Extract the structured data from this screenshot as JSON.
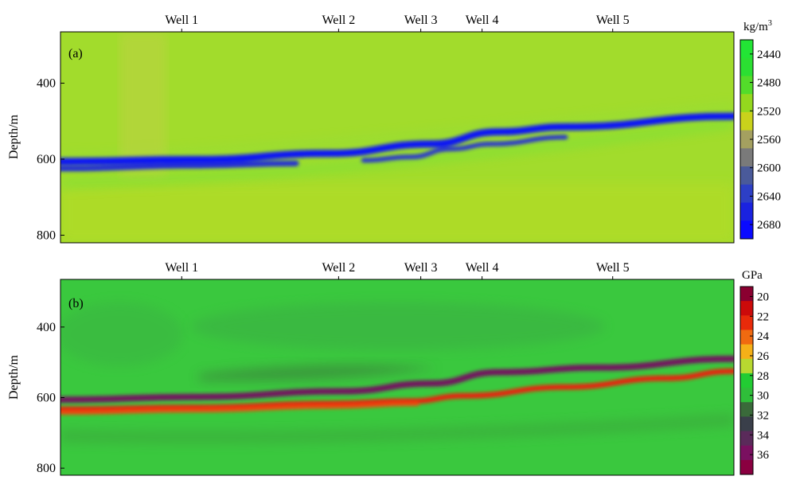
{
  "chart_data": [
    {
      "type": "heatmap",
      "panel_label": "(a)",
      "ylabel": "Depth/m",
      "y_ticks": [
        400,
        600,
        800
      ],
      "ylim": [
        265,
        820
      ],
      "x_unit": "trace",
      "xlim": [
        0,
        100
      ],
      "wells": [
        {
          "name": "Well 1",
          "x": 18
        },
        {
          "name": "Well 2",
          "x": 41.3
        },
        {
          "name": "Well 3",
          "x": 53.5
        },
        {
          "name": "Well 4",
          "x": 62.6
        },
        {
          "name": "Well 5",
          "x": 82
        }
      ],
      "colorbar": {
        "unit_base": "kg/m",
        "unit_sup": "3",
        "ticks": [
          2440,
          2480,
          2520,
          2560,
          2600,
          2640,
          2680
        ],
        "range": [
          2420,
          2700
        ],
        "colors": [
          "#22e535",
          "#2bdf32",
          "#53dc2a",
          "#94d81e",
          "#c9d21b",
          "#a4a060",
          "#7a7a7a",
          "#4a5a9a",
          "#2d3fc6",
          "#1a22e0",
          "#0a0aff"
        ]
      },
      "background_value": 2490,
      "layers": [
        {
          "name": "main dense layer",
          "value": 2690,
          "depth_at": [
            [
              0,
              606
            ],
            [
              20,
              601
            ],
            [
              40,
              585
            ],
            [
              55,
              560
            ],
            [
              65,
              528
            ],
            [
              75,
              515
            ],
            [
              100,
              487
            ]
          ]
        },
        {
          "name": "lower dense layer",
          "value": 2660,
          "depth_at": [
            [
              0,
              625
            ],
            [
              20,
              617
            ],
            [
              35,
              611
            ]
          ]
        },
        {
          "name": "branch layer",
          "value": 2650,
          "depth_at": [
            [
              45,
              603
            ],
            [
              52,
              594
            ],
            [
              58,
              573
            ],
            [
              64,
              560
            ],
            [
              75,
              542
            ]
          ]
        }
      ]
    },
    {
      "type": "heatmap",
      "panel_label": "(b)",
      "ylabel": "Depth/m",
      "y_ticks": [
        400,
        600,
        800
      ],
      "ylim": [
        265,
        820
      ],
      "x_unit": "trace",
      "xlim": [
        0,
        100
      ],
      "wells": [
        {
          "name": "Well 1",
          "x": 18
        },
        {
          "name": "Well 2",
          "x": 41.3
        },
        {
          "name": "Well 3",
          "x": 53.5
        },
        {
          "name": "Well 4",
          "x": 62.6
        },
        {
          "name": "Well 5",
          "x": 82
        }
      ],
      "colorbar": {
        "unit": "GPa",
        "ticks": [
          20,
          22,
          24,
          26,
          28,
          30,
          32,
          34,
          36
        ],
        "range": [
          19,
          38
        ],
        "colors": [
          "#8a0030",
          "#cc0a0a",
          "#e82a0a",
          "#f06a10",
          "#f5b018",
          "#b8d830",
          "#22cc33",
          "#2fbe3a",
          "#3a6a3a",
          "#3a3f4a",
          "#5a2a5a",
          "#7a1060",
          "#8a0040"
        ]
      },
      "background_value": 30.5,
      "layers": [
        {
          "name": "upper dark layer",
          "value": 36,
          "depth_at": [
            [
              0,
              606
            ],
            [
              20,
              598
            ],
            [
              42,
              582
            ],
            [
              55,
              560
            ],
            [
              65,
              528
            ],
            [
              80,
              515
            ],
            [
              100,
              490
            ]
          ]
        },
        {
          "name": "red low-modulus layer",
          "value": 22,
          "depth_at": [
            [
              0,
              633
            ],
            [
              20,
              628
            ],
            [
              40,
              617
            ],
            [
              52,
              610
            ],
            [
              60,
              595
            ],
            [
              75,
              570
            ],
            [
              90,
              545
            ],
            [
              100,
              525
            ]
          ]
        },
        {
          "name": "secondary red layer",
          "value": 23,
          "depth_at": [
            [
              0,
              643
            ],
            [
              20,
              636
            ],
            [
              40,
              626
            ],
            [
              53,
              618
            ]
          ]
        }
      ]
    }
  ]
}
